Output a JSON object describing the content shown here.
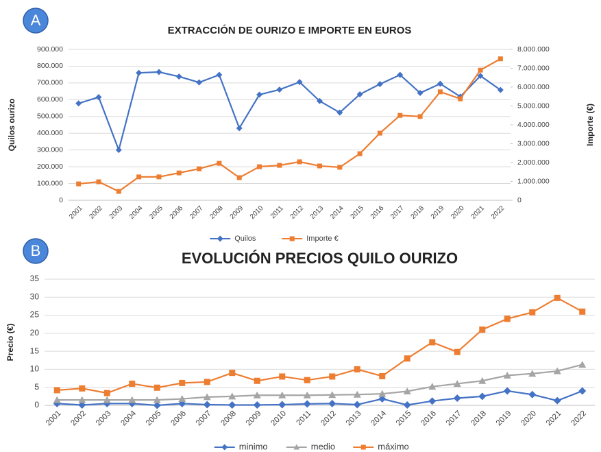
{
  "chart_data": [
    {
      "type": "line",
      "panel": "A",
      "title": "EXTRACCIÓN DE OURIZO E IMPORTE EN EUROS",
      "y_label": "Quilos ourizo",
      "y2_label": "Importe (€)",
      "categories": [
        "2001",
        "2002",
        "2003",
        "2004",
        "2005",
        "2006",
        "2007",
        "2008",
        "2009",
        "2010",
        "2011",
        "2012",
        "2013",
        "2014",
        "2015",
        "2016",
        "2017",
        "2018",
        "2019",
        "2020",
        "2021",
        "2022"
      ],
      "series": [
        {
          "name": "Quilos",
          "color": "#4472c4",
          "marker": "diamond",
          "values": [
            578000,
            615000,
            300000,
            760000,
            765000,
            738000,
            703000,
            748000,
            430000,
            630000,
            660000,
            705000,
            592000,
            523000,
            632000,
            693000,
            748000,
            640000,
            695000,
            618000,
            742000,
            658000
          ]
        },
        {
          "name": "Importe €",
          "color": "#ed7d31",
          "marker": "square",
          "axis": "y2",
          "values": [
            870000,
            980000,
            470000,
            1240000,
            1240000,
            1450000,
            1670000,
            1960000,
            1200000,
            1780000,
            1850000,
            2040000,
            1820000,
            1750000,
            2470000,
            3560000,
            4500000,
            4440000,
            5750000,
            5380000,
            6900000,
            7500000
          ]
        }
      ],
      "ylim": [
        0,
        900000
      ],
      "yticks": [
        0,
        {
          "value": 100000,
          "label": "100.000"
        },
        {
          "value": 200000,
          "label": "200.000"
        },
        {
          "value": 300000,
          "label": "300.000"
        },
        {
          "value": 400000,
          "label": "400.000"
        },
        {
          "value": 500000,
          "label": "500.000"
        },
        {
          "value": 600000,
          "label": "600.000"
        },
        {
          "value": 700000,
          "label": "700.000"
        },
        {
          "value": 800000,
          "label": "800.000"
        },
        {
          "value": 900000,
          "label": "900.000"
        }
      ],
      "y2lim": [
        0,
        8000000
      ],
      "y2ticks": [
        0,
        {
          "value": 1000000,
          "label": "1.000.000"
        },
        {
          "value": 2000000,
          "label": "2.000.000"
        },
        {
          "value": 3000000,
          "label": "3.000.000"
        },
        {
          "value": 4000000,
          "label": "4.000.000"
        },
        {
          "value": 5000000,
          "label": "5.000.000"
        },
        {
          "value": 6000000,
          "label": "6.000.000"
        },
        {
          "value": 7000000,
          "label": "7.000.000"
        },
        {
          "value": 8000000,
          "label": "8.000.000"
        }
      ],
      "grid": true,
      "legend": "bottom"
    },
    {
      "type": "line",
      "panel": "B",
      "title": "EVOLUCIÓN PRECIOS QUILO OURIZO",
      "y_label": "Precio (€)",
      "categories": [
        "2001",
        "2002",
        "2003",
        "2004",
        "2005",
        "2006",
        "2007",
        "2008",
        "2009",
        "2010",
        "2011",
        "2012",
        "2013",
        "2014",
        "2015",
        "2016",
        "2017",
        "2018",
        "2019",
        "2020",
        "2021",
        "2022"
      ],
      "series": [
        {
          "name": "minimo",
          "color": "#4472c4",
          "marker": "diamond",
          "values": [
            0.5,
            0.1,
            0.5,
            0.5,
            0,
            0.5,
            0.2,
            0.1,
            0.1,
            0.2,
            0.4,
            0.5,
            0.2,
            1.8,
            0.1,
            1.2,
            2,
            2.5,
            4,
            3,
            1.3,
            4
          ]
        },
        {
          "name": "medio",
          "color": "#a5a5a5",
          "marker": "triangle",
          "values": [
            1.5,
            1.5,
            1.5,
            1.5,
            1.5,
            1.8,
            2.3,
            2.5,
            2.8,
            2.8,
            2.8,
            2.9,
            3,
            3.2,
            3.9,
            5.2,
            6,
            6.8,
            8.3,
            8.8,
            9.5,
            11.3
          ]
        },
        {
          "name": "máximo",
          "color": "#ed7d31",
          "marker": "square",
          "values": [
            4.2,
            4.7,
            3.4,
            6,
            4.9,
            6.2,
            6.5,
            9,
            6.8,
            8,
            7,
            8,
            10,
            8.1,
            13,
            17.5,
            14.8,
            21,
            24,
            25.8,
            29.8,
            26
          ]
        }
      ],
      "ylim": [
        0,
        35
      ],
      "yticks": [
        0,
        5,
        10,
        15,
        20,
        25,
        30,
        35
      ],
      "grid": true,
      "legend": "bottom"
    }
  ]
}
